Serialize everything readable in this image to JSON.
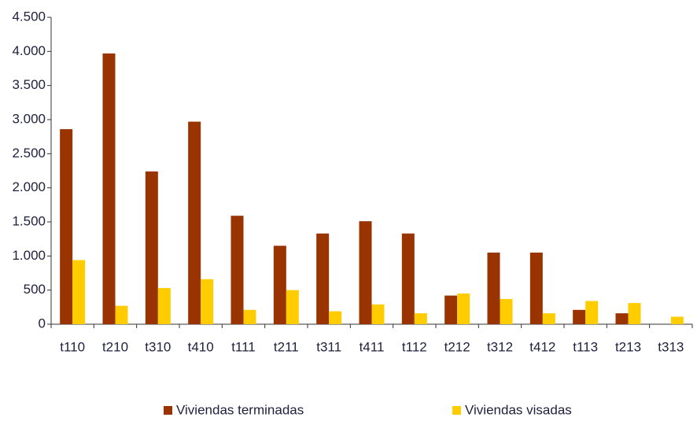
{
  "chart_data": {
    "type": "bar",
    "categories": [
      "t110",
      "t210",
      "t310",
      "t410",
      "t111",
      "t211",
      "t311",
      "t411",
      "t112",
      "t212",
      "t312",
      "t412",
      "t113",
      "t213",
      "t313"
    ],
    "series": [
      {
        "name": "Viviendas terminadas",
        "color": "#993300",
        "values": [
          2860,
          3970,
          2240,
          2970,
          1590,
          1150,
          1330,
          1510,
          1330,
          420,
          1050,
          1050,
          210,
          160,
          null
        ]
      },
      {
        "name": "Viviendas visadas",
        "color": "#ffcc00",
        "values": [
          940,
          270,
          530,
          660,
          210,
          500,
          190,
          290,
          160,
          450,
          370,
          160,
          340,
          310,
          110
        ]
      }
    ],
    "ylim": [
      0,
      4500
    ],
    "yticks": [
      0,
      {
        "value": 500,
        "label": "500"
      },
      {
        "value": 1000,
        "label": "1.000"
      },
      {
        "value": 1500,
        "label": "1.500"
      },
      {
        "value": 2000,
        "label": "2.000"
      },
      {
        "value": 2500,
        "label": "2.500"
      },
      {
        "value": 3000,
        "label": "3.000"
      },
      {
        "value": 3500,
        "label": "3.500"
      },
      {
        "value": 4000,
        "label": "4.000"
      },
      {
        "value": 4500,
        "label": "4.500"
      }
    ],
    "grid": false,
    "legend": "bottom"
  }
}
